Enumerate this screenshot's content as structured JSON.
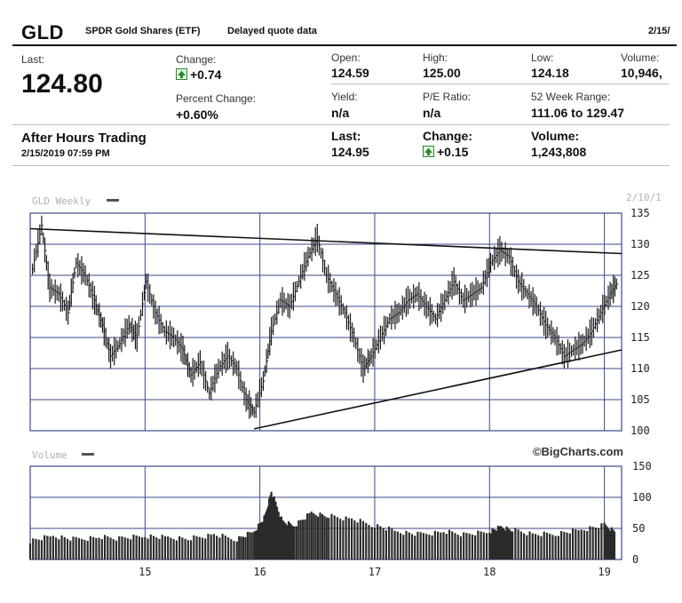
{
  "header": {
    "ticker": "GLD",
    "name": "SPDR Gold Shares (ETF)",
    "delayed": "Delayed quote data",
    "date": "2/15/"
  },
  "quote": {
    "last_label": "Last:",
    "last": "124.80",
    "change_label": "Change:",
    "change": "+0.74",
    "pct_label": "Percent Change:",
    "pct": "+0.60%",
    "open_label": "Open:",
    "open": "124.59",
    "high_label": "High:",
    "high": "125.00",
    "low_label": "Low:",
    "low": "124.18",
    "volume_label": "Volume:",
    "volume": "10,946,",
    "yield_label": "Yield:",
    "yield": "n/a",
    "pe_label": "P/E Ratio:",
    "pe": "n/a",
    "range_label": "52 Week Range:",
    "range": "111.06 to 129.47"
  },
  "after_hours": {
    "title": "After Hours Trading",
    "datetime": "2/15/2019 07:59 PM",
    "last_label": "Last:",
    "last": "124.95",
    "change_label": "Change:",
    "change": "+0.15",
    "volume_label": "Volume:",
    "volume": "1,243,808"
  },
  "colors": {
    "up": "#2a8a2a",
    "grid": "#3a4a8a",
    "bars": "#1a1a1a"
  },
  "chart_data": [
    {
      "type": "line",
      "title": "GLD Weekly",
      "corner_date": "2/10/1",
      "ylim": [
        100,
        135
      ],
      "yticks": [
        135,
        130,
        125,
        120,
        115,
        110,
        105,
        100
      ],
      "xlim": [
        2014.0,
        2019.15
      ],
      "xticks": [
        2015,
        2016,
        2017,
        2018,
        2019
      ],
      "xtick_labels": [
        "15",
        "16",
        "17",
        "18",
        "19"
      ],
      "grid": true,
      "x": [
        2014.02,
        2014.1,
        2014.17,
        2014.25,
        2014.33,
        2014.4,
        2014.48,
        2014.56,
        2014.63,
        2014.7,
        2014.78,
        2014.86,
        2014.93,
        2015.01,
        2015.09,
        2015.17,
        2015.25,
        2015.33,
        2015.4,
        2015.48,
        2015.56,
        2015.64,
        2015.72,
        2015.8,
        2015.88,
        2015.95,
        2016.03,
        2016.1,
        2016.18,
        2016.26,
        2016.34,
        2016.42,
        2016.5,
        2016.58,
        2016.66,
        2016.74,
        2016.82,
        2016.9,
        2016.97,
        2017.05,
        2017.13,
        2017.21,
        2017.29,
        2017.37,
        2017.45,
        2017.53,
        2017.61,
        2017.69,
        2017.77,
        2017.85,
        2017.93,
        2018.01,
        2018.09,
        2018.17,
        2018.25,
        2018.33,
        2018.41,
        2018.49,
        2018.57,
        2018.65,
        2018.73,
        2018.81,
        2018.89,
        2018.97,
        2019.05,
        2019.12
      ],
      "y": [
        126,
        133,
        123,
        122,
        119,
        127,
        125,
        121,
        117,
        112,
        114,
        117,
        115,
        124,
        119,
        116,
        115,
        113,
        109,
        111,
        106,
        110,
        112,
        110,
        105,
        103,
        108,
        116,
        121,
        120,
        124,
        128,
        131,
        125,
        122,
        119,
        115,
        110,
        112,
        115,
        118,
        119,
        121,
        122,
        120,
        118,
        121,
        124,
        121,
        122,
        123,
        127,
        129,
        128,
        124,
        122,
        120,
        117,
        115,
        112,
        113,
        114,
        116,
        119,
        122,
        124
      ],
      "trendlines": [
        {
          "x": [
            2014.0,
            2019.15
          ],
          "y": [
            132.5,
            128.5
          ]
        },
        {
          "x": [
            2015.95,
            2019.15
          ],
          "y": [
            100.3,
            113.0
          ]
        }
      ],
      "source": "©BigCharts.com"
    },
    {
      "type": "area",
      "title": "Volume",
      "ylim": [
        0,
        150
      ],
      "yticks": [
        150,
        100,
        50,
        0
      ],
      "x": [
        2014.0,
        2014.2,
        2014.4,
        2014.6,
        2014.8,
        2015.0,
        2015.2,
        2015.4,
        2015.6,
        2015.8,
        2015.95,
        2016.05,
        2016.1,
        2016.2,
        2016.3,
        2016.45,
        2016.6,
        2016.8,
        2017.0,
        2017.2,
        2017.4,
        2017.6,
        2017.8,
        2018.0,
        2018.1,
        2018.2,
        2018.4,
        2018.6,
        2018.8,
        2019.0,
        2019.1
      ],
      "values": [
        30,
        38,
        32,
        36,
        34,
        38,
        35,
        34,
        40,
        33,
        45,
        70,
        110,
        60,
        55,
        75,
        70,
        65,
        55,
        45,
        40,
        45,
        40,
        45,
        52,
        48,
        40,
        42,
        48,
        55,
        45
      ]
    }
  ]
}
